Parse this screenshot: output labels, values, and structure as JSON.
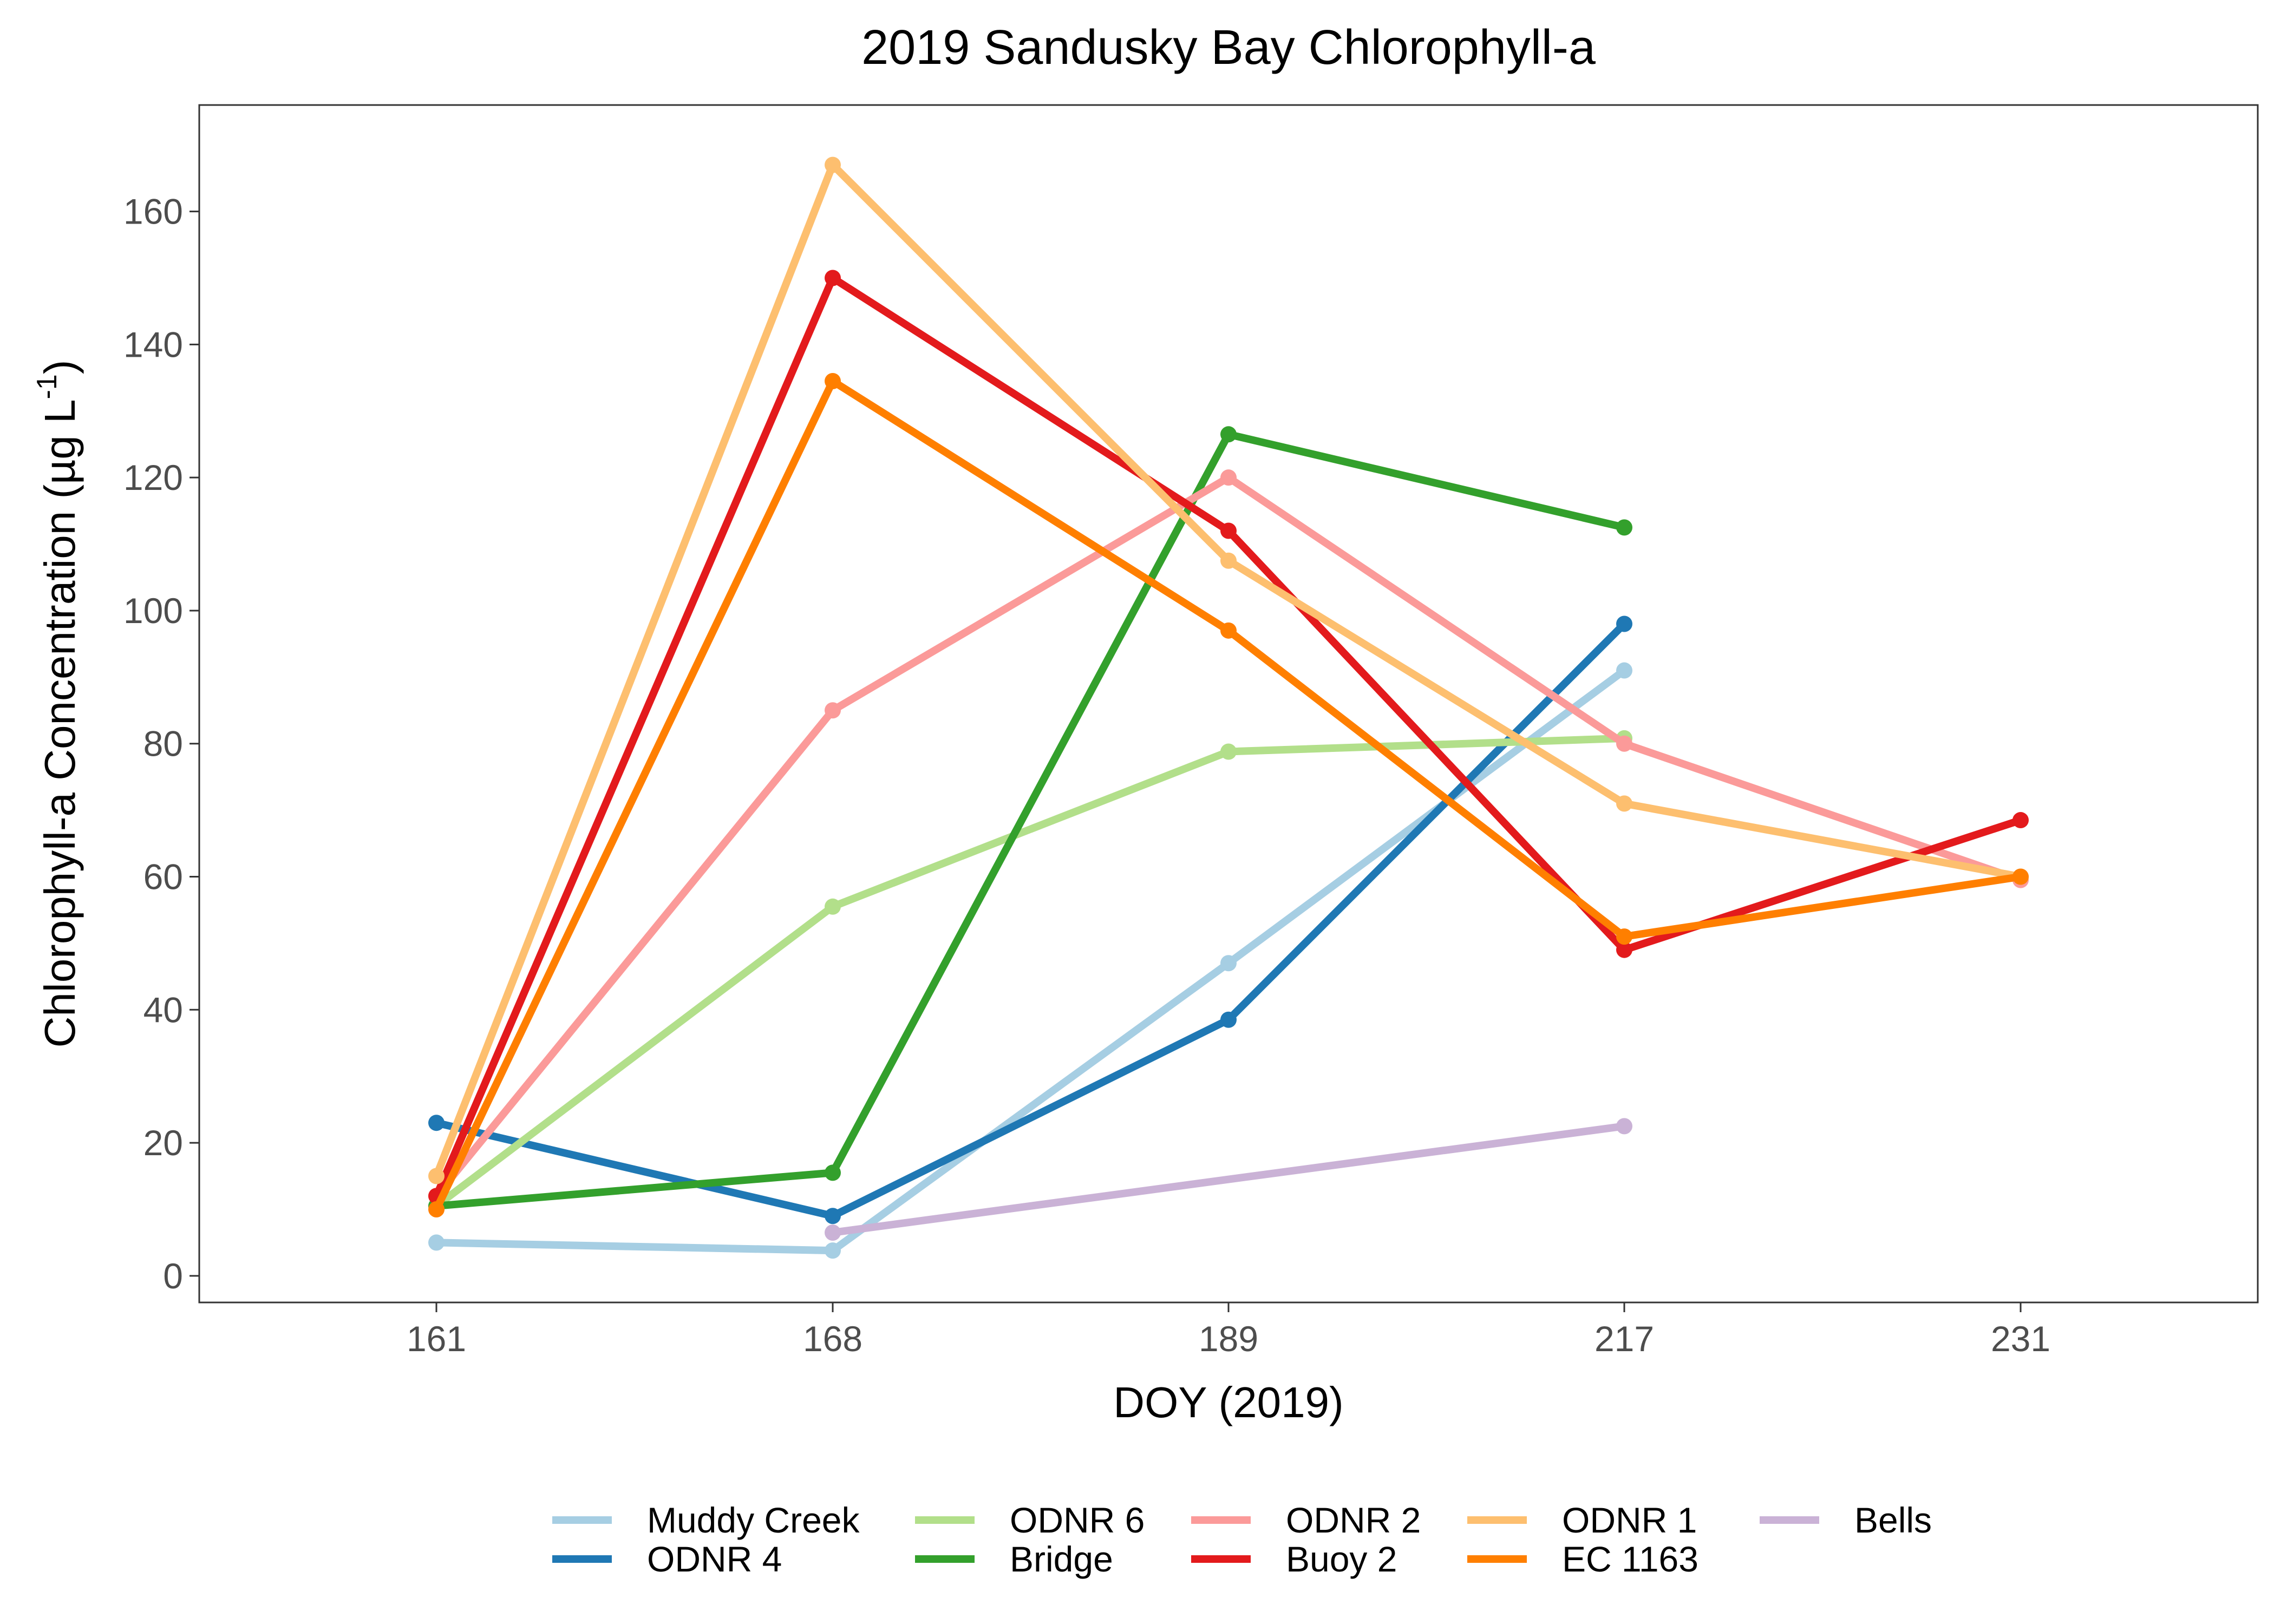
{
  "chart_data": {
    "type": "line",
    "title": "2019 Sandusky Bay Chlorophyll-a",
    "xlabel": "DOY (2019)",
    "ylabel_main": "Chlorophyll-a Concentration (µg L",
    "ylabel_superscript": "-1",
    "ylabel_close": ")",
    "x_scale": "categorical",
    "categories": [
      "161",
      "168",
      "189",
      "217",
      "231"
    ],
    "ylim": [
      -4,
      176
    ],
    "y_ticks": [
      0,
      20,
      40,
      60,
      80,
      100,
      120,
      140,
      160
    ],
    "grid": false,
    "legend_position": "bottom",
    "series": [
      {
        "name": "Muddy Creek",
        "color": "#A6CEE3",
        "values": [
          5,
          3.8,
          47,
          91,
          null
        ]
      },
      {
        "name": "ODNR 4",
        "color": "#1F78B4",
        "values": [
          23,
          9,
          38.5,
          98,
          null
        ]
      },
      {
        "name": "ODNR 6",
        "color": "#B2DF8A",
        "values": [
          10.5,
          55.5,
          78.8,
          80.8,
          null
        ]
      },
      {
        "name": "Bridge",
        "color": "#33A02C",
        "values": [
          10.5,
          15.5,
          126.5,
          112.5,
          null
        ]
      },
      {
        "name": "ODNR 2",
        "color": "#FB9A99",
        "values": [
          12,
          85,
          120,
          80,
          59.5
        ]
      },
      {
        "name": "Buoy 2",
        "color": "#E31A1C",
        "values": [
          12,
          150,
          112,
          49,
          68.5
        ]
      },
      {
        "name": "ODNR 1",
        "color": "#FDBF6F",
        "values": [
          15,
          167,
          107.5,
          71,
          60
        ]
      },
      {
        "name": "EC 1163",
        "color": "#FF7F00",
        "values": [
          10,
          134.5,
          97,
          51,
          60
        ]
      },
      {
        "name": "Bells",
        "color": "#CAB2D6",
        "values": [
          null,
          6.5,
          null,
          22.5,
          null
        ]
      }
    ]
  }
}
